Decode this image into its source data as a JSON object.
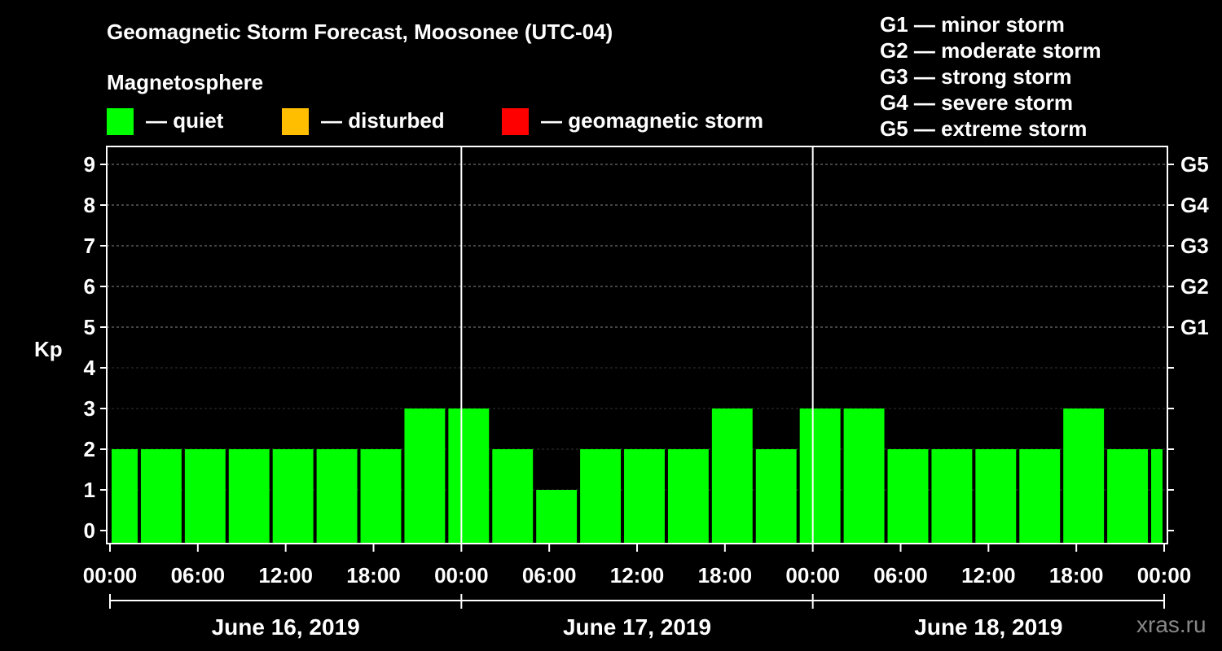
{
  "chart_data": {
    "type": "bar",
    "title": "Geomagnetic Storm Forecast, Moosonee (UTC-04)",
    "subtitle": "Magnetosphere",
    "ylabel": "Kp",
    "ylim": [
      0,
      9
    ],
    "y_ticks": [
      "0",
      "1",
      "2",
      "3",
      "4",
      "5",
      "6",
      "7",
      "8",
      "9"
    ],
    "right_ticks": [
      {
        "kp": 5,
        "label": "G1"
      },
      {
        "kp": 6,
        "label": "G2"
      },
      {
        "kp": 7,
        "label": "G3"
      },
      {
        "kp": 8,
        "label": "G4"
      },
      {
        "kp": 9,
        "label": "G5"
      }
    ],
    "grid": true,
    "x_range_hours": [
      0,
      72
    ],
    "x_tick_labels": [
      "00:00",
      "06:00",
      "12:00",
      "18:00",
      "00:00",
      "06:00",
      "12:00",
      "18:00",
      "00:00",
      "06:00",
      "12:00",
      "18:00",
      "00:00"
    ],
    "days": [
      "June 16, 2019",
      "June 17, 2019",
      "June 18, 2019"
    ],
    "bars": [
      {
        "start_hour": 0,
        "end_hour": 2,
        "kp": 2
      },
      {
        "start_hour": 2,
        "end_hour": 5,
        "kp": 2
      },
      {
        "start_hour": 5,
        "end_hour": 8,
        "kp": 2
      },
      {
        "start_hour": 8,
        "end_hour": 11,
        "kp": 2
      },
      {
        "start_hour": 11,
        "end_hour": 14,
        "kp": 2
      },
      {
        "start_hour": 14,
        "end_hour": 17,
        "kp": 2
      },
      {
        "start_hour": 17,
        "end_hour": 20,
        "kp": 2
      },
      {
        "start_hour": 20,
        "end_hour": 23,
        "kp": 3
      },
      {
        "start_hour": 23,
        "end_hour": 26,
        "kp": 3
      },
      {
        "start_hour": 26,
        "end_hour": 29,
        "kp": 2
      },
      {
        "start_hour": 29,
        "end_hour": 32,
        "kp": 1
      },
      {
        "start_hour": 32,
        "end_hour": 35,
        "kp": 2
      },
      {
        "start_hour": 35,
        "end_hour": 38,
        "kp": 2
      },
      {
        "start_hour": 38,
        "end_hour": 41,
        "kp": 2
      },
      {
        "start_hour": 41,
        "end_hour": 44,
        "kp": 3
      },
      {
        "start_hour": 44,
        "end_hour": 47,
        "kp": 2
      },
      {
        "start_hour": 47,
        "end_hour": 50,
        "kp": 3
      },
      {
        "start_hour": 50,
        "end_hour": 53,
        "kp": 3
      },
      {
        "start_hour": 53,
        "end_hour": 56,
        "kp": 2
      },
      {
        "start_hour": 56,
        "end_hour": 59,
        "kp": 2
      },
      {
        "start_hour": 59,
        "end_hour": 62,
        "kp": 2
      },
      {
        "start_hour": 62,
        "end_hour": 65,
        "kp": 2
      },
      {
        "start_hour": 65,
        "end_hour": 68,
        "kp": 3
      },
      {
        "start_hour": 68,
        "end_hour": 71,
        "kp": 2
      },
      {
        "start_hour": 71,
        "end_hour": 72,
        "kp": 2
      }
    ],
    "colors": {
      "quiet": "#00ff00",
      "disturbed": "#ffbf00",
      "storm": "#ff0000"
    }
  },
  "legend": [
    {
      "label": "— quiet",
      "color": "#00ff00"
    },
    {
      "label": "— disturbed",
      "color": "#ffbf00"
    },
    {
      "label": "— geomagnetic storm",
      "color": "#ff0000"
    }
  ],
  "g_scale": [
    "G1 — minor storm",
    "G2 — moderate storm",
    "G3 — strong storm",
    "G4 — severe storm",
    "G5 — extreme storm"
  ],
  "watermark": "xras.ru"
}
